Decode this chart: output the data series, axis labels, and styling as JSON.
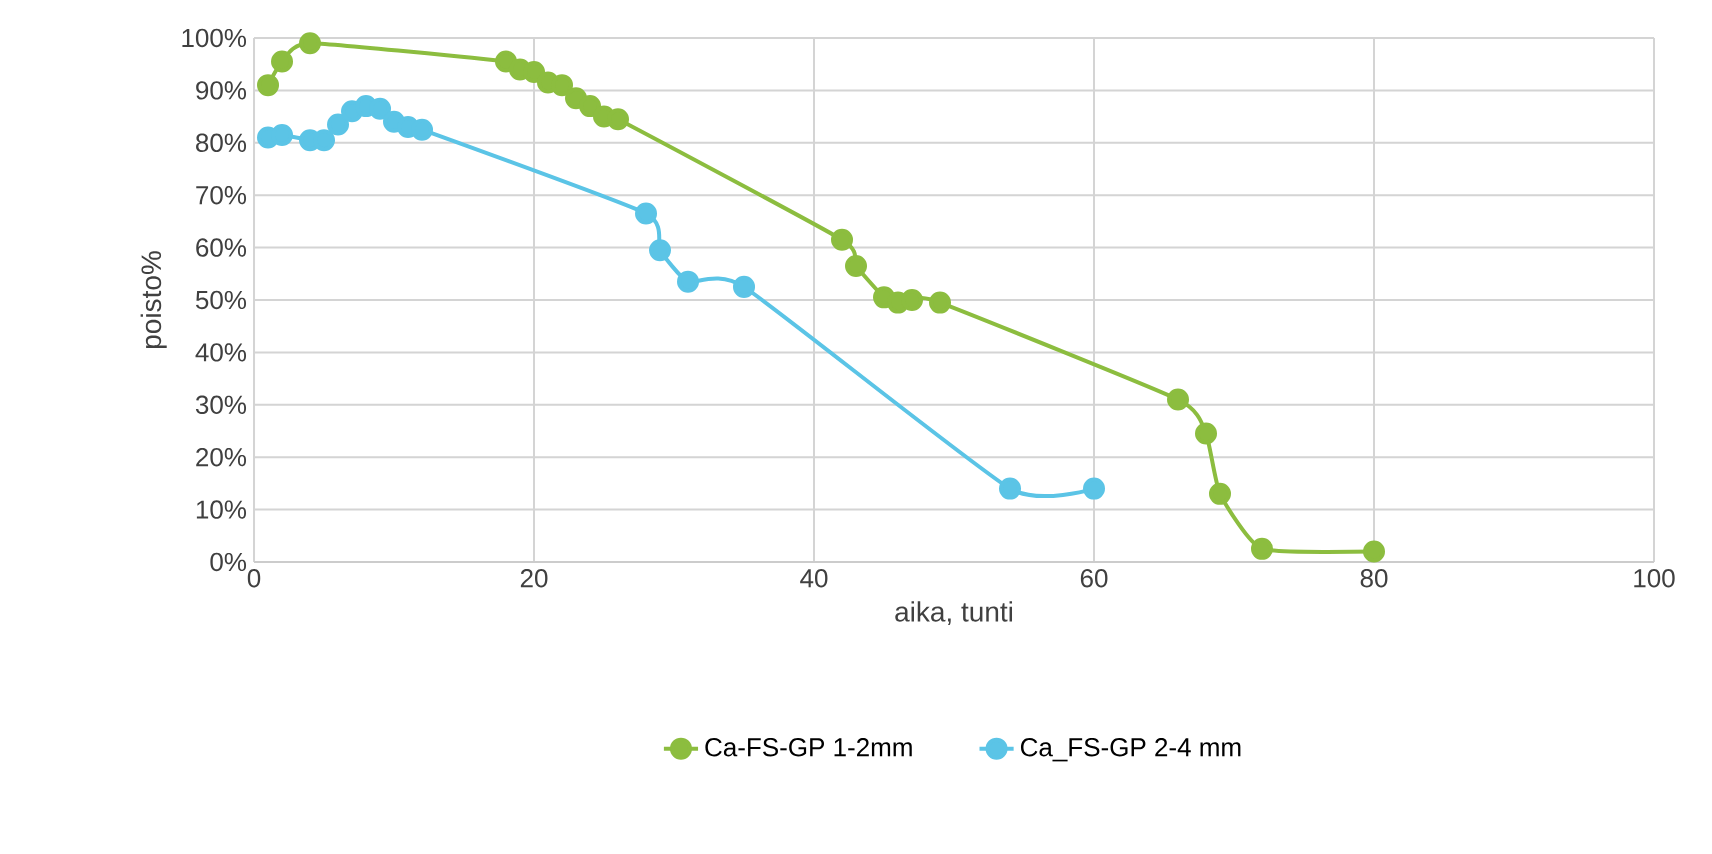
{
  "chart_data": {
    "type": "line",
    "xlabel": "aika, tunti",
    "ylabel": "poisto%",
    "xlim": [
      0,
      100
    ],
    "xticks": [
      0,
      20,
      40,
      60,
      80,
      100
    ],
    "ylim": [
      0,
      100
    ],
    "yticks": [
      {
        "value": 0,
        "label": "0%"
      },
      {
        "value": 10,
        "label": "10%"
      },
      {
        "value": 20,
        "label": "20%"
      },
      {
        "value": 30,
        "label": "30%"
      },
      {
        "value": 40,
        "label": "40%"
      },
      {
        "value": 50,
        "label": "50%"
      },
      {
        "value": 60,
        "label": "60%"
      },
      {
        "value": 70,
        "label": "70%"
      },
      {
        "value": 80,
        "label": "80%"
      },
      {
        "value": 90,
        "label": "90%"
      },
      {
        "value": 100,
        "label": "100%"
      }
    ],
    "grid": true,
    "legend": "bottom",
    "marker": "circle",
    "line_style": "solid",
    "series": [
      {
        "name": "Ca-FS-GP 1-2mm",
        "color": "#8cbd3f",
        "x": [
          1,
          2,
          4,
          18,
          19,
          20,
          21,
          22,
          23,
          24,
          25,
          26,
          42,
          43,
          45,
          46,
          47,
          49,
          66,
          68,
          69,
          72,
          80
        ],
        "values": [
          91,
          95.5,
          99,
          95.5,
          94,
          93.5,
          91.5,
          91,
          88.5,
          87,
          85,
          84.5,
          61.5,
          56.5,
          50.5,
          49.5,
          50,
          49.5,
          31,
          24.5,
          13,
          2.5,
          2
        ]
      },
      {
        "name": "Ca_FS-GP 2-4 mm",
        "color": "#5bc4e6",
        "x": [
          1,
          2,
          4,
          5,
          6,
          7,
          8,
          9,
          10,
          11,
          12,
          28,
          29,
          31,
          35,
          54,
          60
        ],
        "values": [
          81,
          81.5,
          80.5,
          80.5,
          83.5,
          86,
          87,
          86.5,
          84,
          83,
          82.5,
          66.5,
          59.5,
          53.5,
          52.5,
          14,
          14
        ]
      }
    ]
  }
}
